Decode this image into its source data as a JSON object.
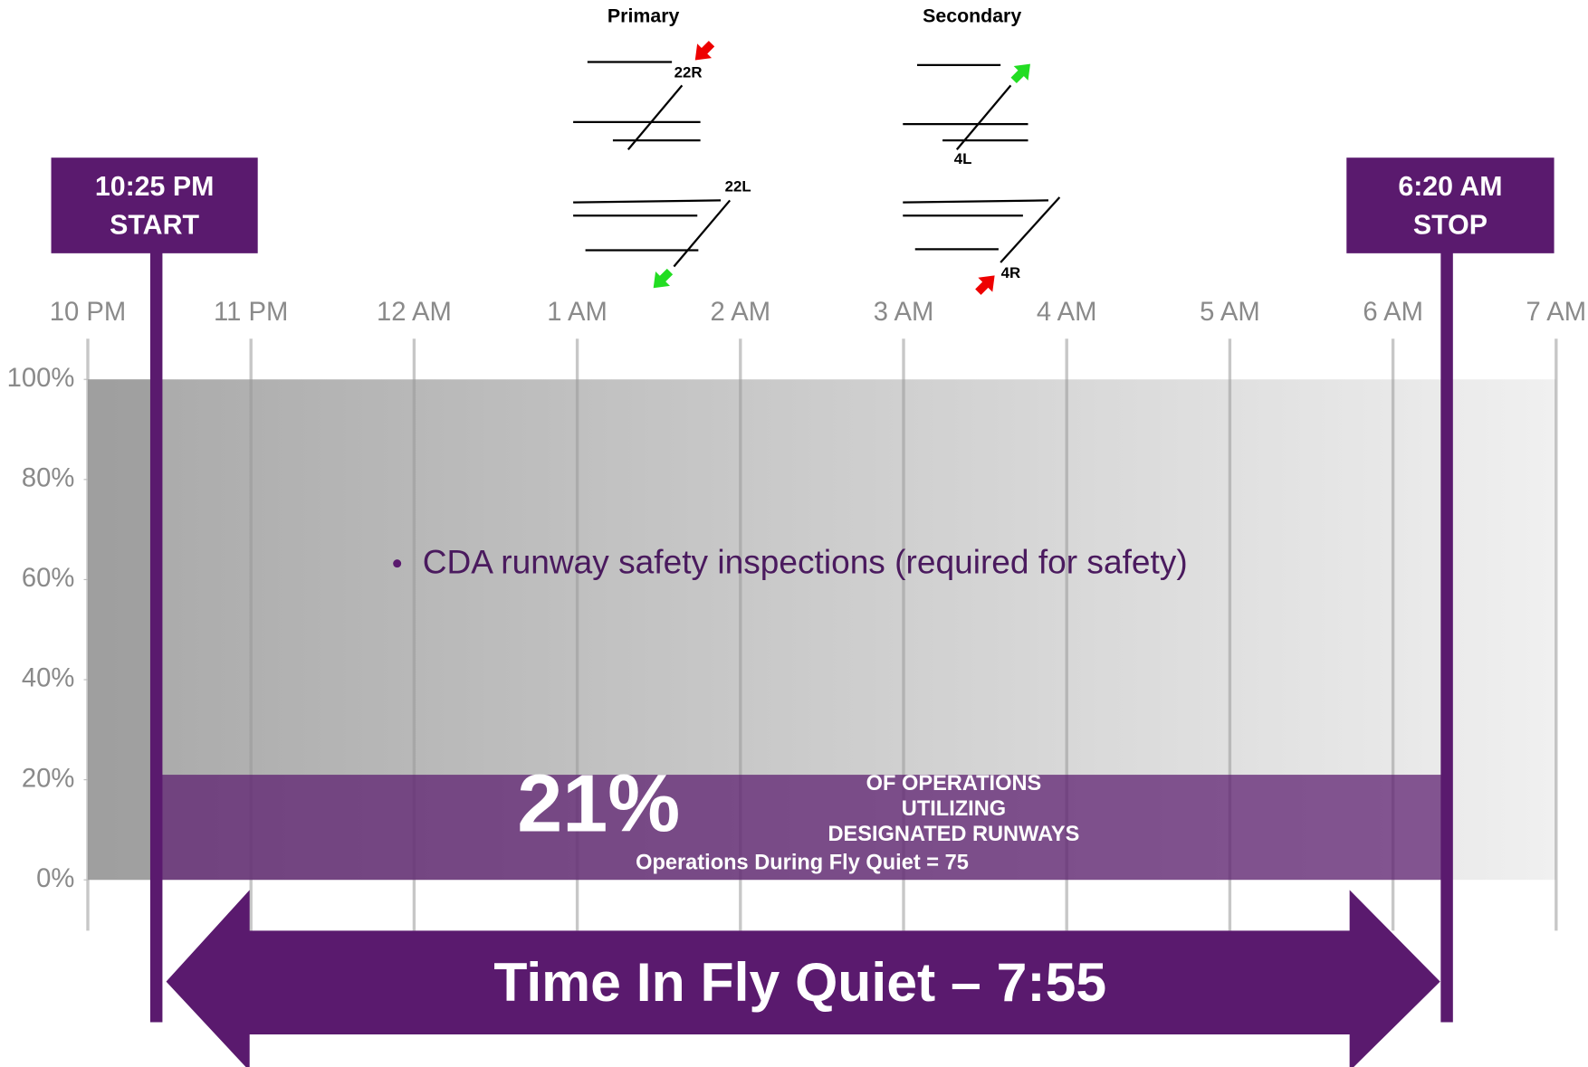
{
  "chart_data": {
    "type": "timeline",
    "primary": "Primary",
    "secondary": "Secondary",
    "runway_labels": [
      "22R",
      "22L",
      "4L",
      "4R"
    ],
    "xlim": [
      0,
      9
    ],
    "xticks": [
      {
        "value": 0,
        "label": "10 PM"
      },
      {
        "value": 1,
        "label": "11 PM"
      },
      {
        "value": 2,
        "label": "12 AM"
      },
      {
        "value": 3,
        "label": "1 AM"
      },
      {
        "value": 4,
        "label": "2 AM"
      },
      {
        "value": 5,
        "label": "3 AM"
      },
      {
        "value": 6,
        "label": "4 AM"
      },
      {
        "value": 7,
        "label": "5 AM"
      },
      {
        "value": 8,
        "label": "6 AM"
      },
      {
        "value": 9,
        "label": "7 AM"
      }
    ],
    "ylim": [
      0,
      100
    ],
    "yticks": [
      {
        "value": 0,
        "label": "0%"
      },
      {
        "value": 20,
        "label": "20%"
      },
      {
        "value": 40,
        "label": "40%"
      },
      {
        "value": 60,
        "label": "60%"
      },
      {
        "value": 80,
        "label": "80%"
      },
      {
        "value": 100,
        "label": "100%"
      }
    ],
    "start": {
      "time": "10:25 PM",
      "label": "START",
      "x": 0.42
    },
    "stop": {
      "time": "6:20 AM",
      "label": "STOP",
      "x": 8.33
    },
    "bullet": "CDA runway safety inspections (required for safety)",
    "values": [
      21
    ],
    "value_labels": [
      "21%"
    ],
    "caption": [
      "OF OPERATIONS",
      "UTILIZING",
      "DESIGNATED RUNWAYS"
    ],
    "note": "Operations During Fly Quiet = 75",
    "duration": "Time In Fly Quiet – 7:55",
    "color": "#5a1a6e"
  }
}
